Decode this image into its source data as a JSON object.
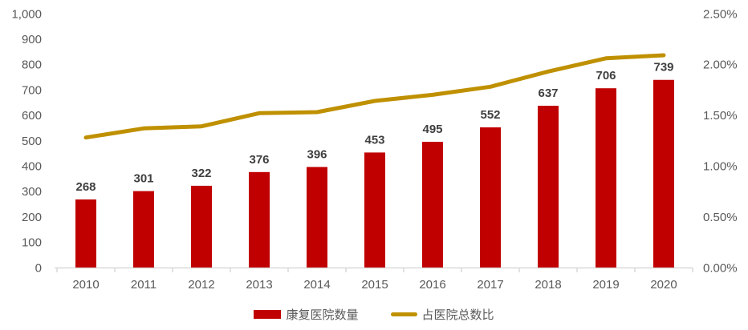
{
  "chart_data": {
    "type": "bar",
    "subtype": "combo-bar-line",
    "title": "",
    "xlabel": "",
    "ylabel": "",
    "grid": false,
    "legend_position": "bottom",
    "categories": [
      "2010",
      "2011",
      "2012",
      "2013",
      "2014",
      "2015",
      "2016",
      "2017",
      "2018",
      "2019",
      "2020"
    ],
    "series": [
      {
        "name": "康复医院数量",
        "type": "bar",
        "axis": "left",
        "color": "#C00000",
        "values": [
          268,
          301,
          322,
          376,
          396,
          453,
          495,
          552,
          637,
          706,
          739
        ],
        "data_labels": [
          "268",
          "301",
          "322",
          "376",
          "396",
          "453",
          "495",
          "552",
          "637",
          "706",
          "739"
        ]
      },
      {
        "name": "占医院总数比",
        "type": "line",
        "axis": "right",
        "color": "#BF9000",
        "unit": "%",
        "values": [
          1.28,
          1.37,
          1.39,
          1.52,
          1.53,
          1.64,
          1.7,
          1.78,
          1.93,
          2.06,
          2.09
        ]
      }
    ],
    "left_axis": {
      "min": 0,
      "max": 1000,
      "step": 100,
      "tick_labels": [
        "0",
        "100",
        "200",
        "300",
        "400",
        "500",
        "600",
        "700",
        "800",
        "900",
        "1,000"
      ]
    },
    "right_axis": {
      "min": 0,
      "max": 2.5,
      "step": 0.5,
      "tick_labels": [
        "0.00%",
        "0.50%",
        "1.00%",
        "1.50%",
        "2.00%",
        "2.50%"
      ]
    },
    "style": {
      "bar_color": "#C00000",
      "line_color": "#BF9000",
      "data_label_color": "#3F3F3F",
      "axis_text_color": "#595959",
      "axis_line_color": "#D9D9D9",
      "background": "#FFFFFF"
    }
  }
}
